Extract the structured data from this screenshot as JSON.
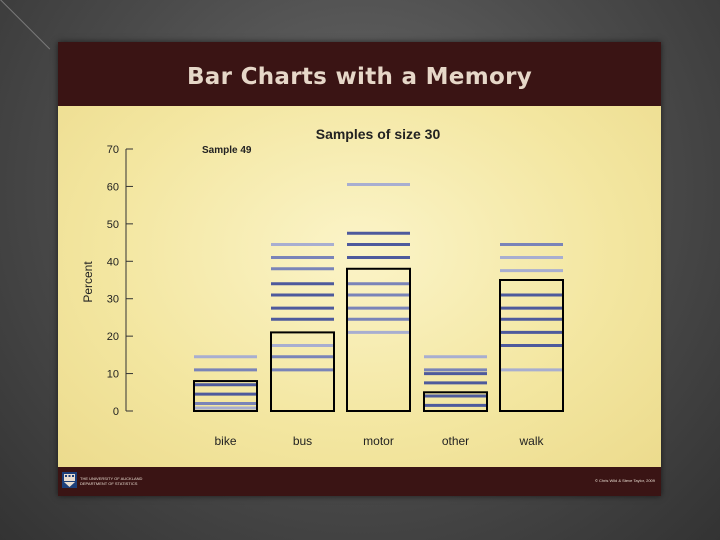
{
  "slide": {
    "title": "Bar Charts with a Memory",
    "footer_left_line1": "THE UNIVERSITY OF AUCKLAND",
    "footer_left_line2": "DEPARTMENT OF STATISTICS",
    "footer_right": "© Chris Wild & Steve Taylor, 2009"
  },
  "chart_data": {
    "type": "bar",
    "title": "Samples of size 30",
    "annotation": "Sample 49",
    "xlabel": "",
    "ylabel": "Percent",
    "ylim": [
      0,
      70
    ],
    "yticks": [
      0,
      10,
      20,
      30,
      40,
      50,
      60,
      70
    ],
    "grid": false,
    "categories": [
      "bike",
      "bus",
      "motor",
      "other",
      "walk"
    ],
    "values": [
      8,
      21,
      38,
      5,
      35
    ],
    "memory_lines": [
      [
        {
          "y": 14.5,
          "shade": "pale"
        },
        {
          "y": 11,
          "shade": "mid"
        },
        {
          "y": 7,
          "shade": "dark"
        },
        {
          "y": 4.5,
          "shade": "dark"
        },
        {
          "y": 2,
          "shade": "mid"
        },
        {
          "y": 0.8,
          "shade": "pale"
        }
      ],
      [
        {
          "y": 44.5,
          "shade": "pale"
        },
        {
          "y": 41,
          "shade": "mid"
        },
        {
          "y": 38,
          "shade": "mid"
        },
        {
          "y": 34,
          "shade": "dark"
        },
        {
          "y": 31,
          "shade": "dark"
        },
        {
          "y": 27.5,
          "shade": "dark"
        },
        {
          "y": 24.5,
          "shade": "dark"
        },
        {
          "y": 17.5,
          "shade": "pale"
        },
        {
          "y": 14.5,
          "shade": "mid"
        },
        {
          "y": 11,
          "shade": "mid"
        }
      ],
      [
        {
          "y": 60.5,
          "shade": "pale"
        },
        {
          "y": 47.5,
          "shade": "dark"
        },
        {
          "y": 44.5,
          "shade": "dark"
        },
        {
          "y": 41,
          "shade": "dark"
        },
        {
          "y": 34,
          "shade": "mid"
        },
        {
          "y": 31,
          "shade": "mid"
        },
        {
          "y": 27.5,
          "shade": "mid"
        },
        {
          "y": 24.5,
          "shade": "mid"
        },
        {
          "y": 21,
          "shade": "pale"
        }
      ],
      [
        {
          "y": 14.5,
          "shade": "pale"
        },
        {
          "y": 11,
          "shade": "mid"
        },
        {
          "y": 10,
          "shade": "dark"
        },
        {
          "y": 7.5,
          "shade": "dark"
        },
        {
          "y": 4,
          "shade": "dark"
        },
        {
          "y": 1.5,
          "shade": "dark"
        }
      ],
      [
        {
          "y": 44.5,
          "shade": "mid"
        },
        {
          "y": 41,
          "shade": "pale"
        },
        {
          "y": 37.5,
          "shade": "pale"
        },
        {
          "y": 31,
          "shade": "dark"
        },
        {
          "y": 27.5,
          "shade": "dark"
        },
        {
          "y": 24.5,
          "shade": "dark"
        },
        {
          "y": 21,
          "shade": "dark"
        },
        {
          "y": 17.5,
          "shade": "dark"
        },
        {
          "y": 11,
          "shade": "pale"
        }
      ]
    ],
    "colors": {
      "dark": "#4e5a9c",
      "mid": "#7a84b8",
      "pale": "#a8aed0",
      "bar_outline": "#000000",
      "axis": "#333333",
      "text": "#222222"
    }
  }
}
